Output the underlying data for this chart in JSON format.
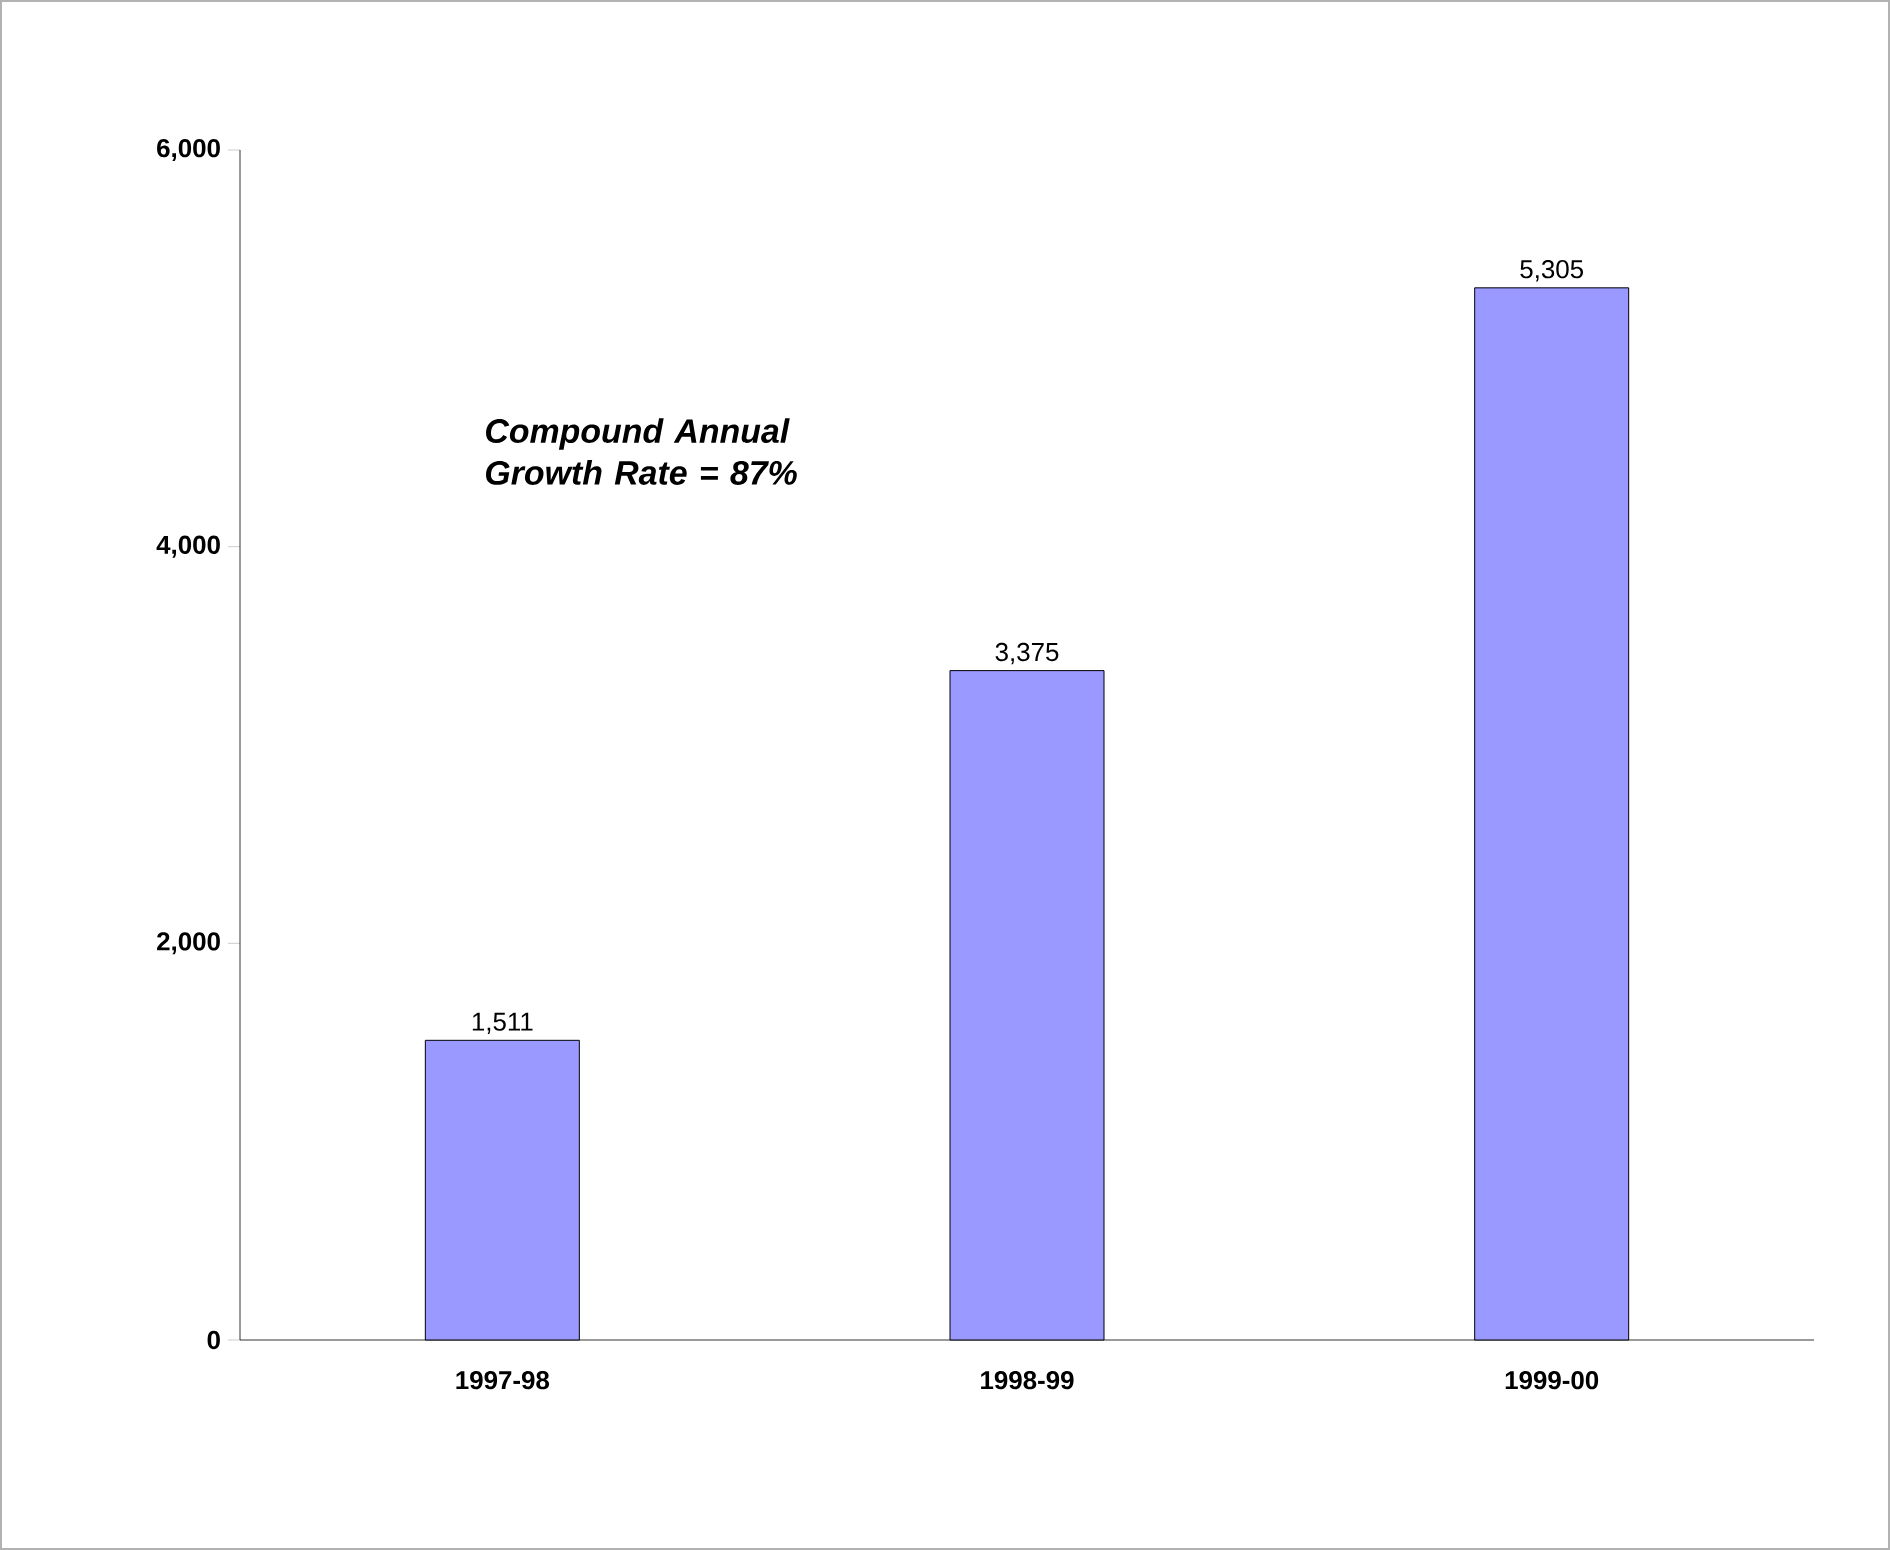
{
  "chart_data": {
    "type": "bar",
    "categories": [
      "1997-98",
      "1998-99",
      "1999-00"
    ],
    "values": [
      1511,
      3375,
      5305
    ],
    "value_labels": [
      "1,511",
      "3,375",
      "5,305"
    ],
    "color": "#9999ff",
    "ylim": [
      0,
      6000
    ],
    "yticks": [
      {
        "value": 0,
        "label": "0"
      },
      {
        "value": 2000,
        "label": "2,000"
      },
      {
        "value": 4000,
        "label": "4,000"
      },
      {
        "value": 6000,
        "label": "6,000"
      }
    ],
    "annotations": [
      "Compound Annual Growth Rate = 87%"
    ],
    "grid": false
  }
}
